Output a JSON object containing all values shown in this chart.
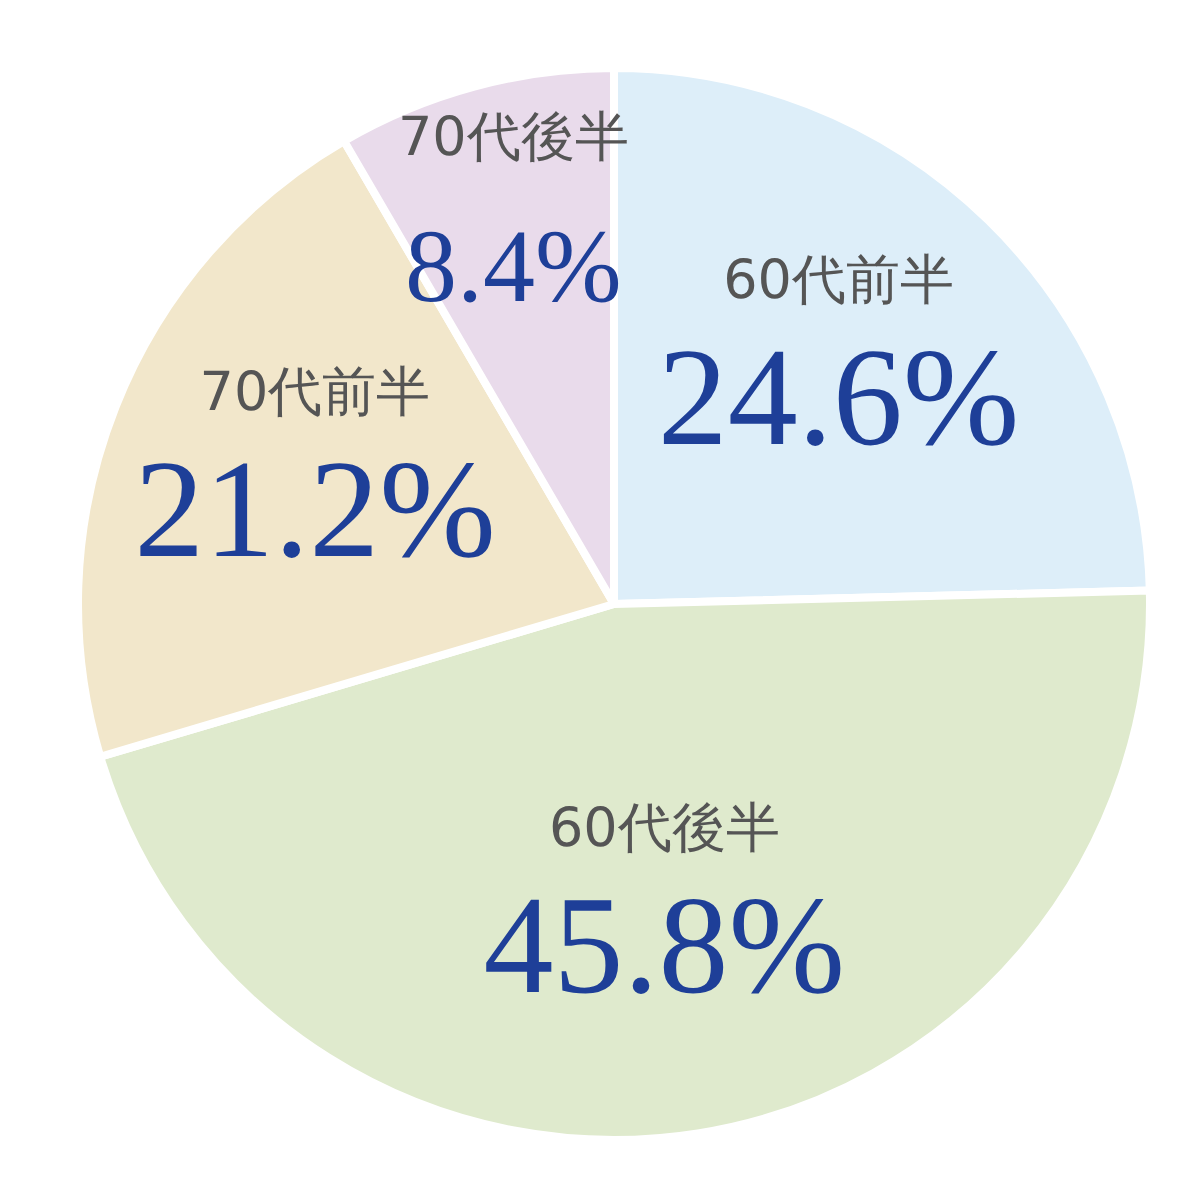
{
  "chart_data": {
    "type": "pie",
    "categories": [
      "60代前半",
      "60代後半",
      "70代前半",
      "70代後半"
    ],
    "values": [
      24.6,
      45.8,
      21.2,
      8.4
    ],
    "value_labels": [
      "24.6%",
      "45.8%",
      "21.2%",
      "8.4%"
    ],
    "colors": [
      "#ddeef9",
      "#dfeacd",
      "#f2e7cb",
      "#e9dbeb"
    ]
  }
}
